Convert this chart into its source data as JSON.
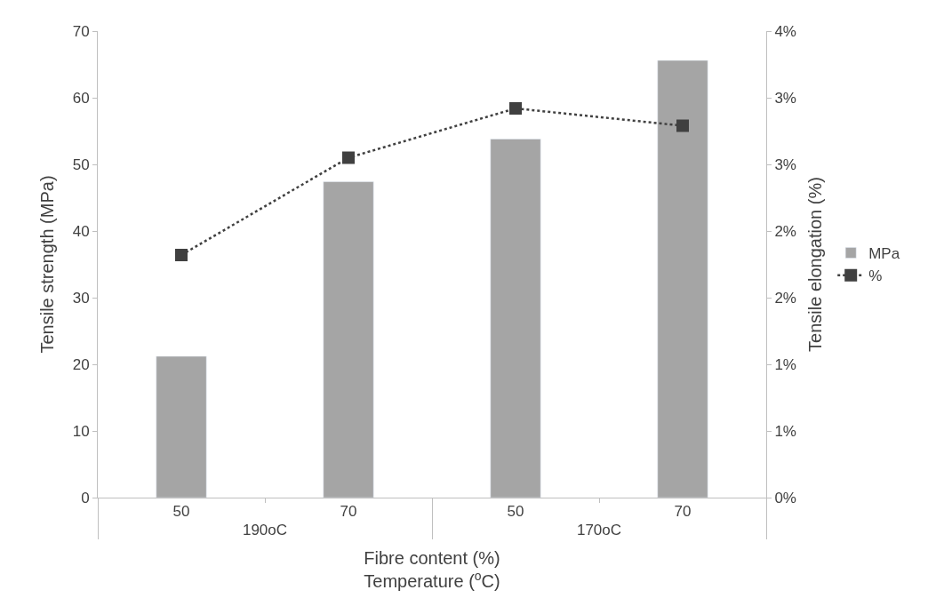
{
  "chart_data": {
    "type": "bar",
    "categories": [
      "50",
      "70",
      "50",
      "70"
    ],
    "annotations": [
      "190oC",
      "170oC"
    ],
    "xlabel": "Fibre content (%)\nTemperature ($^{o}$C)",
    "ylabel": "Tensile strength (MPa)",
    "y2label": "Tensile elongation (%)",
    "series": [
      {
        "name": "MPa",
        "color": "#a5a5a5",
        "values": [
          21.2,
          47.4,
          53.8,
          65.6
        ]
      },
      {
        "name": "%",
        "type": "line",
        "axis": "y2",
        "color": "#404040",
        "marker": "square",
        "line_style": "dotted",
        "values": [
          1.82,
          2.55,
          2.92,
          2.79
        ]
      }
    ],
    "ylim": [
      0,
      70
    ],
    "yticks": [
      0,
      10,
      20,
      30,
      40,
      50,
      60,
      70
    ],
    "y2lim": [
      0,
      3.5
    ],
    "y2ticks": [
      {
        "value": 0,
        "label": "0%"
      },
      {
        "value": 0.5,
        "label": "1%"
      },
      {
        "value": 1,
        "label": "1%"
      },
      {
        "value": 1.5,
        "label": "2%"
      },
      {
        "value": 2,
        "label": "2%"
      },
      {
        "value": 2.5,
        "label": "3%"
      },
      {
        "value": 3,
        "label": "3%"
      },
      {
        "value": 3.5,
        "label": "4%"
      }
    ],
    "legend": "right"
  }
}
